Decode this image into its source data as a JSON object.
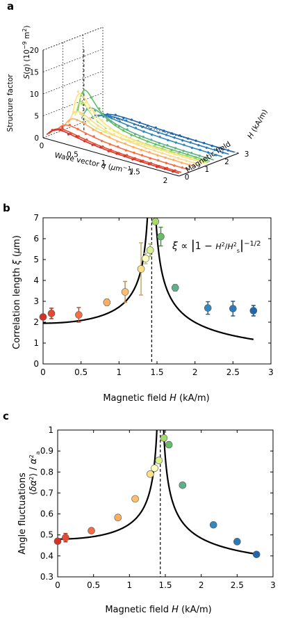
{
  "chart_data": [
    {
      "panel": "a",
      "type": "line",
      "xlabel": "Wave vector  q (μm⁻¹)",
      "ylabel": "Structure factor  S(q) (10⁻⁹ m²)",
      "zlabel": "Magnetic field  H (kA/m)",
      "xticks": [
        "0",
        "0.5",
        "1",
        "1.5",
        "2"
      ],
      "yticks": [
        "0",
        "5",
        "10",
        "15",
        "20"
      ],
      "zticks": [
        "0",
        "1",
        "2",
        "3"
      ],
      "xlim": [
        0,
        2.2
      ],
      "ylim": [
        0,
        20
      ],
      "zlim": [
        0,
        3
      ],
      "series": [
        {
          "H": 0.0,
          "color": "#d73027"
        },
        {
          "H": 0.11,
          "color": "#e34a33"
        },
        {
          "H": 0.47,
          "color": "#f46d43"
        },
        {
          "H": 0.84,
          "color": "#fdae61"
        },
        {
          "H": 1.08,
          "color": "#fed98e"
        },
        {
          "H": 1.29,
          "color": "#fee08b"
        },
        {
          "H": 1.35,
          "color": "#ffffbf"
        },
        {
          "H": 1.41,
          "color": "#d9ef8b"
        },
        {
          "H": 1.48,
          "color": "#a6d96a"
        },
        {
          "H": 1.55,
          "color": "#66bd63"
        },
        {
          "H": 1.74,
          "color": "#5fb08a"
        },
        {
          "H": 2.17,
          "color": "#3288bd"
        },
        {
          "H": 2.5,
          "color": "#2b7bba"
        },
        {
          "H": 2.77,
          "color": "#2166ac"
        }
      ]
    },
    {
      "panel": "b",
      "type": "scatter",
      "xlabel": "Magnetic field   H (kA/m)",
      "ylabel": "Correlation length   ξ (μm)",
      "annotation": "ξ ∝ |1 − H²/H²s|^(−1/2)",
      "xlim": [
        0,
        3
      ],
      "ylim": [
        0,
        7
      ],
      "xticks": [
        "0",
        "0.5",
        "1",
        "1.5",
        "2",
        "2.5",
        "3"
      ],
      "yticks": [
        "0",
        "1",
        "2",
        "3",
        "4",
        "5",
        "6",
        "7"
      ],
      "critical_field": 1.43,
      "points": [
        {
          "x": 0.0,
          "y": 2.25,
          "err": 0.0,
          "color": "#d73027"
        },
        {
          "x": 0.11,
          "y": 2.42,
          "err": 0.25,
          "color": "#e34a33"
        },
        {
          "x": 0.47,
          "y": 2.35,
          "err": 0.35,
          "color": "#f46d43"
        },
        {
          "x": 0.84,
          "y": 2.95,
          "err": 0.15,
          "color": "#fdae61"
        },
        {
          "x": 1.08,
          "y": 3.45,
          "err": 0.5,
          "color": "#fdbf6f"
        },
        {
          "x": 1.29,
          "y": 4.55,
          "err": 1.25,
          "color": "#fee08b"
        },
        {
          "x": 1.35,
          "y": 5.05,
          "err": 0.25,
          "color": "#ffffbf"
        },
        {
          "x": 1.41,
          "y": 5.45,
          "err": 0.3,
          "color": "#d9ef8b"
        },
        {
          "x": 1.48,
          "y": 6.82,
          "err": 0.12,
          "color": "#a6d96a"
        },
        {
          "x": 1.55,
          "y": 6.1,
          "err": 0.45,
          "color": "#66bd63"
        },
        {
          "x": 1.74,
          "y": 3.65,
          "err": 0.15,
          "color": "#5fb08a"
        },
        {
          "x": 2.17,
          "y": 2.68,
          "err": 0.3,
          "color": "#3288bd"
        },
        {
          "x": 2.5,
          "y": 2.65,
          "err": 0.35,
          "color": "#2b7bba"
        },
        {
          "x": 2.77,
          "y": 2.55,
          "err": 0.25,
          "color": "#2166ac"
        }
      ]
    },
    {
      "panel": "c",
      "type": "scatter",
      "xlabel": "Magnetic field   H (kA/m)",
      "ylabel": "Angle fluctuations   ⟨δα²⟩ / α²a",
      "xlim": [
        0,
        3
      ],
      "ylim": [
        0.3,
        1.0
      ],
      "xticks": [
        "0",
        "0.5",
        "1",
        "1.5",
        "2",
        "2.5",
        "3"
      ],
      "yticks": [
        "0.3",
        "0.4",
        "0.5",
        "0.6",
        "0.7",
        "0.8",
        "0.9",
        "1"
      ],
      "critical_field": 1.43,
      "points": [
        {
          "x": 0.0,
          "y": 0.47,
          "err": 0.0,
          "color": "#d73027"
        },
        {
          "x": 0.11,
          "y": 0.487,
          "err": 0.02,
          "color": "#e34a33"
        },
        {
          "x": 0.47,
          "y": 0.52,
          "err": 0.0,
          "color": "#f46d43"
        },
        {
          "x": 0.84,
          "y": 0.583,
          "err": 0.0,
          "color": "#fdae61"
        },
        {
          "x": 1.08,
          "y": 0.672,
          "err": 0.0,
          "color": "#fdbf6f"
        },
        {
          "x": 1.29,
          "y": 0.79,
          "err": 0.0,
          "color": "#fee08b"
        },
        {
          "x": 1.35,
          "y": 0.818,
          "err": 0.0,
          "color": "#ffffbf"
        },
        {
          "x": 1.41,
          "y": 0.855,
          "err": 0.0,
          "color": "#d9ef8b"
        },
        {
          "x": 1.48,
          "y": 0.962,
          "err": 0.0,
          "color": "#a6d96a"
        },
        {
          "x": 1.55,
          "y": 0.93,
          "err": 0.0,
          "color": "#66bd63"
        },
        {
          "x": 1.74,
          "y": 0.737,
          "err": 0.0,
          "color": "#5fb08a"
        },
        {
          "x": 2.17,
          "y": 0.548,
          "err": 0.0,
          "color": "#3288bd"
        },
        {
          "x": 2.5,
          "y": 0.468,
          "err": 0.0,
          "color": "#2b7bba"
        },
        {
          "x": 2.77,
          "y": 0.407,
          "err": 0.0,
          "color": "#2166ac"
        }
      ]
    }
  ]
}
